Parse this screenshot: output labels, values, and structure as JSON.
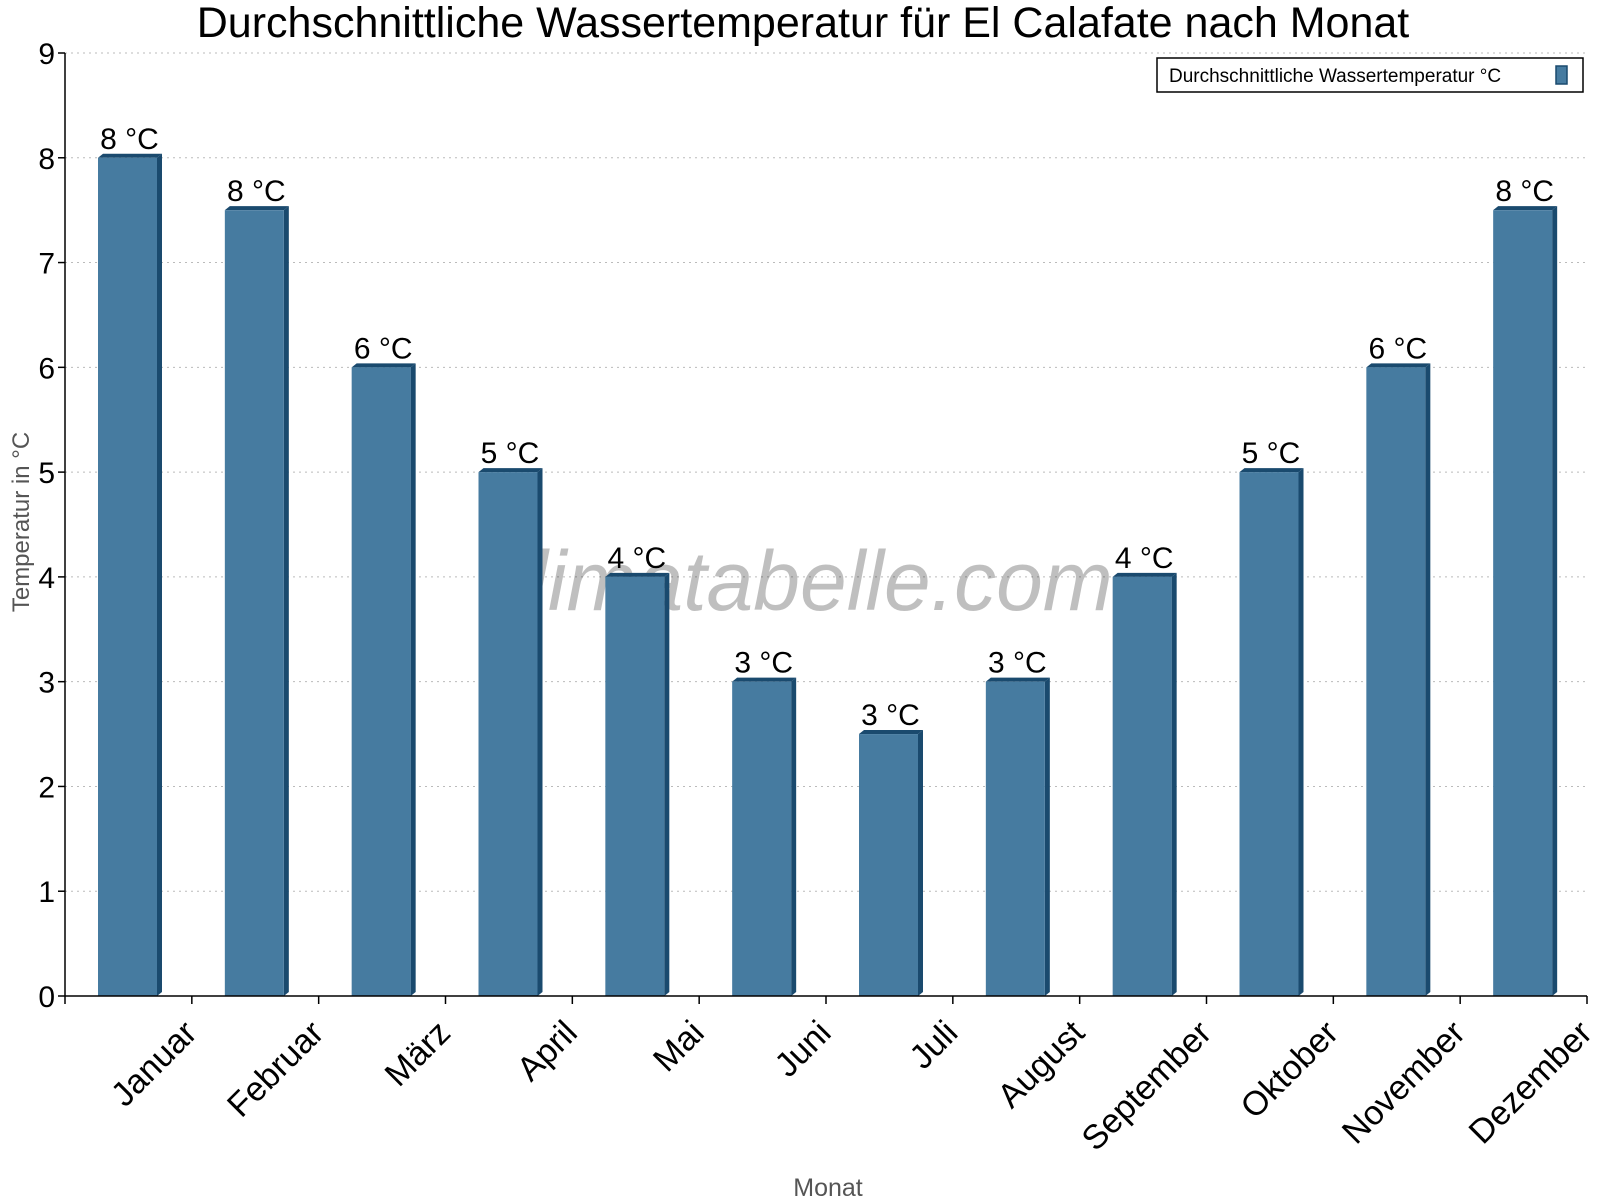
{
  "chart_data": {
    "type": "bar",
    "title": "Durchschnittliche Wassertemperatur für El Calafate nach Monat",
    "xlabel": "Monat",
    "ylabel": "Temperatur in °C",
    "categories": [
      "Januar",
      "Februar",
      "März",
      "April",
      "Mai",
      "Juni",
      "Juli",
      "August",
      "September",
      "Oktober",
      "November",
      "Dezember"
    ],
    "series": [
      {
        "name": "Durchschnittliche Wassertemperatur °C",
        "values": [
          8,
          7.5,
          6,
          5,
          4,
          3,
          2.5,
          3,
          4,
          5,
          6,
          7.5
        ],
        "data_labels": [
          "8 °C",
          "8 °C",
          "6 °C",
          "5 °C",
          "4 °C",
          "3 °C",
          "3 °C",
          "3 °C",
          "4 °C",
          "5 °C",
          "6 °C",
          "8 °C"
        ]
      }
    ],
    "ylim": [
      0,
      9
    ],
    "yticks": [
      "0",
      "1",
      "2",
      "3",
      "4",
      "5",
      "6",
      "7",
      "8",
      "9"
    ],
    "grid": true,
    "legend_position": "top-right",
    "colors": {
      "bar_front": "#467ba0",
      "bar_side": "#1a4a6e"
    },
    "watermark": "klimatabelle.com"
  }
}
